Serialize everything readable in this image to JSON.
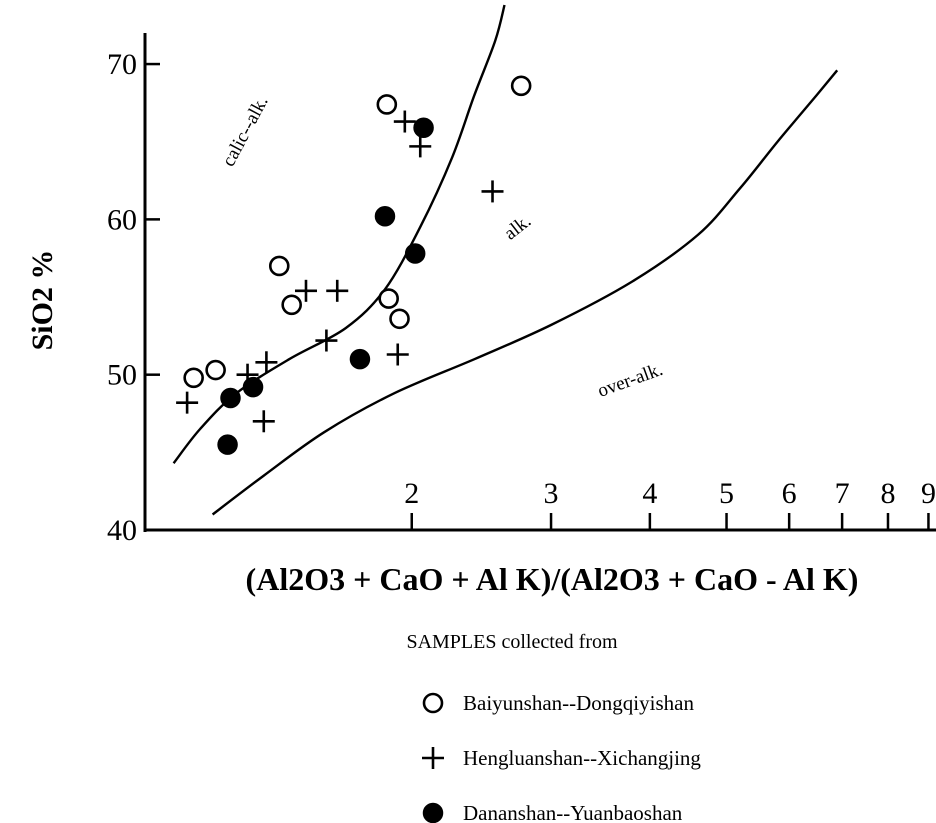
{
  "chart_data": {
    "type": "scatter",
    "x_scale": "log",
    "xlim": [
      0.92,
      9.2
    ],
    "ylim": [
      40,
      72
    ],
    "xlabel": "(Al2O3 + CaO + Al K)/(Al2O3 + CaO - Al K)",
    "ylabel": "SiO2 %",
    "yticks": [
      {
        "value": 40,
        "label": "40"
      },
      {
        "value": 50,
        "label": "50"
      },
      {
        "value": 60,
        "label": "60"
      },
      {
        "value": 70,
        "label": "70"
      }
    ],
    "xticks": [
      {
        "value": 2,
        "label": "2"
      },
      {
        "value": 3,
        "label": "3"
      },
      {
        "value": 4,
        "label": "4"
      },
      {
        "value": 5,
        "label": "5"
      },
      {
        "value": 6,
        "label": "6"
      },
      {
        "value": 7,
        "label": "7"
      },
      {
        "value": 8,
        "label": "8"
      },
      {
        "value": 9,
        "label": "9"
      }
    ],
    "regions": [
      {
        "label": "calic--alk.",
        "x": 1.25,
        "y": 65.5,
        "rotate": -62
      },
      {
        "label": "alk.",
        "x": 2.75,
        "y": 59.2,
        "rotate": -38
      },
      {
        "label": "over-alk.",
        "x": 3.8,
        "y": 49.3,
        "rotate": -20
      }
    ],
    "boundaries": [
      {
        "name": "calic-alk / alk",
        "points": [
          [
            1.0,
            44.3
          ],
          [
            1.08,
            46.5
          ],
          [
            1.2,
            48.8
          ],
          [
            1.4,
            51.0
          ],
          [
            1.65,
            53.0
          ],
          [
            1.85,
            55.5
          ],
          [
            2.05,
            59.5
          ],
          [
            2.25,
            64.0
          ],
          [
            2.4,
            68.0
          ],
          [
            2.55,
            71.5
          ],
          [
            2.62,
            73.8
          ]
        ]
      },
      {
        "name": "alk / over-alk",
        "points": [
          [
            1.12,
            41.0
          ],
          [
            1.3,
            43.5
          ],
          [
            1.55,
            46.3
          ],
          [
            1.9,
            48.8
          ],
          [
            2.4,
            51.0
          ],
          [
            3.0,
            53.2
          ],
          [
            3.8,
            56.0
          ],
          [
            4.6,
            59.0
          ],
          [
            5.2,
            62.0
          ],
          [
            5.8,
            65.0
          ],
          [
            6.5,
            68.0
          ],
          [
            6.9,
            69.6
          ]
        ]
      }
    ],
    "legend_title": "SAMPLES  collected from",
    "legend_position": "bottom",
    "series": [
      {
        "name": "Baiyunshan--Dongqiyishan",
        "marker": "open-circle",
        "points": [
          [
            1.06,
            49.8
          ],
          [
            1.13,
            50.3
          ],
          [
            1.36,
            57.0
          ],
          [
            1.41,
            54.5
          ],
          [
            1.86,
            67.4
          ],
          [
            1.87,
            54.9
          ],
          [
            1.93,
            53.6
          ],
          [
            2.75,
            68.6
          ]
        ]
      },
      {
        "name": "Hengluanshan--Xichangjing",
        "marker": "plus",
        "points": [
          [
            1.04,
            48.2
          ],
          [
            1.24,
            50.0
          ],
          [
            1.31,
            50.8
          ],
          [
            1.47,
            55.4
          ],
          [
            1.61,
            55.4
          ],
          [
            1.56,
            52.2
          ],
          [
            1.92,
            51.3
          ],
          [
            1.96,
            66.3
          ],
          [
            2.05,
            64.7
          ],
          [
            2.53,
            61.8
          ],
          [
            1.3,
            47.0
          ]
        ]
      },
      {
        "name": "Dananshan--Yuanbaoshan",
        "marker": "filled-circle",
        "points": [
          [
            1.17,
            45.5
          ],
          [
            1.18,
            48.5
          ],
          [
            1.26,
            49.2
          ],
          [
            1.72,
            51.0
          ],
          [
            1.85,
            60.2
          ],
          [
            2.02,
            57.8
          ],
          [
            2.07,
            65.9
          ]
        ]
      }
    ]
  }
}
